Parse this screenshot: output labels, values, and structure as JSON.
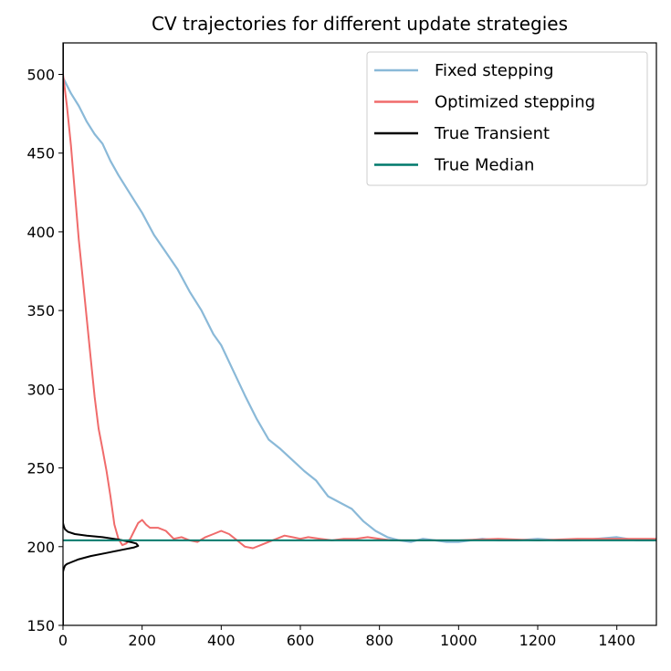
{
  "chart_data": {
    "type": "line",
    "title": "CV trajectories for different update strategies",
    "xlabel": "",
    "ylabel": "",
    "xlim": [
      0,
      1500
    ],
    "ylim": [
      150,
      520
    ],
    "xticks": [
      0,
      200,
      400,
      600,
      800,
      1000,
      1200,
      1400
    ],
    "yticks": [
      150,
      200,
      250,
      300,
      350,
      400,
      450,
      500
    ],
    "grid": false,
    "legend_position": "top-right",
    "series": [
      {
        "name": "Fixed stepping",
        "color": "#8ab9d8",
        "x": [
          0,
          20,
          40,
          60,
          80,
          100,
          120,
          140,
          160,
          180,
          200,
          230,
          260,
          290,
          320,
          350,
          380,
          400,
          430,
          460,
          490,
          520,
          550,
          580,
          610,
          640,
          670,
          700,
          730,
          760,
          790,
          820,
          850,
          880,
          910,
          940,
          970,
          1000,
          1030,
          1060,
          1100,
          1150,
          1200,
          1250,
          1300,
          1350,
          1400,
          1450,
          1500
        ],
        "y": [
          498,
          488,
          480,
          470,
          462,
          456,
          445,
          436,
          428,
          420,
          412,
          398,
          387,
          376,
          362,
          350,
          335,
          328,
          312,
          296,
          281,
          268,
          262,
          255,
          248,
          242,
          232,
          228,
          224,
          216,
          210,
          206,
          204,
          203,
          205,
          204,
          203,
          203,
          204,
          205,
          204,
          204,
          205,
          204,
          204,
          205,
          206,
          204,
          204
        ]
      },
      {
        "name": "Optimized stepping",
        "color": "#f06b6b",
        "x": [
          0,
          10,
          20,
          30,
          40,
          50,
          60,
          70,
          80,
          90,
          100,
          110,
          120,
          130,
          140,
          150,
          160,
          170,
          180,
          190,
          200,
          210,
          220,
          240,
          260,
          280,
          300,
          320,
          340,
          360,
          380,
          400,
          420,
          440,
          460,
          480,
          500,
          520,
          540,
          560,
          580,
          600,
          620,
          650,
          680,
          710,
          740,
          770,
          800,
          830,
          860,
          900,
          1000,
          1100,
          1200,
          1300,
          1400,
          1500
        ],
        "y": [
          500,
          480,
          455,
          425,
          395,
          370,
          345,
          320,
          295,
          275,
          262,
          248,
          232,
          214,
          205,
          201,
          202,
          205,
          210,
          215,
          217,
          214,
          212,
          212,
          210,
          205,
          206,
          204,
          203,
          206,
          208,
          210,
          208,
          204,
          200,
          199,
          201,
          203,
          205,
          207,
          206,
          205,
          206,
          205,
          204,
          205,
          205,
          206,
          205,
          204,
          204,
          204,
          204,
          205,
          204,
          205,
          205,
          205
        ]
      },
      {
        "name": "True Transient",
        "color": "#000000",
        "x": [
          0,
          0,
          0,
          0,
          2,
          5,
          10,
          20,
          40,
          70,
          110,
          150,
          180,
          190,
          185,
          170,
          140,
          100,
          60,
          30,
          12,
          5,
          2,
          0,
          0,
          0
        ],
        "y": [
          150,
          170,
          180,
          184,
          186,
          188,
          189,
          190,
          192,
          194,
          196,
          198,
          199.5,
          200.5,
          202,
          203,
          204.5,
          206,
          207,
          208,
          209.5,
          211,
          213,
          215,
          450,
          520
        ]
      },
      {
        "name": "True Median",
        "color": "#00796b",
        "x": [
          0,
          1500
        ],
        "y": [
          204,
          204
        ]
      }
    ]
  }
}
